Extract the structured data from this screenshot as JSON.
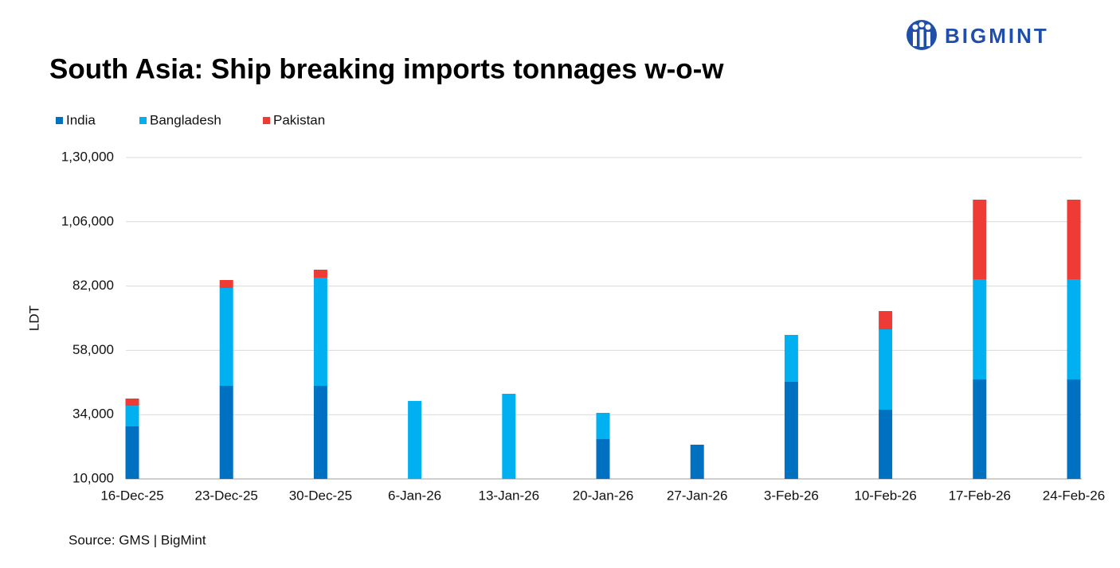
{
  "logo": "BIGMINT",
  "chart_data": {
    "type": "bar",
    "stacked": true,
    "title": "South Asia: Ship breaking imports tonnages w-o-w",
    "y_label": "LDT",
    "source": "Source: GMS | BigMint",
    "categories": [
      "16-Dec-25",
      "23-Dec-25",
      "30-Dec-25",
      "6-Jan-26",
      "13-Jan-26",
      "20-Jan-26",
      "27-Jan-26",
      "3-Feb-26",
      "10-Feb-26",
      "17-Feb-26",
      "24-Feb-26"
    ],
    "series": [
      {
        "name": "India",
        "color": "#0070c0",
        "values": [
          29600,
          44750,
          44750,
          0,
          0,
          24850,
          22770,
          46240,
          35840,
          47130,
          47130
        ]
      },
      {
        "name": "Bangladesh",
        "color": "#00b0f0",
        "values": [
          7700,
          36540,
          40400,
          39100,
          41780,
          9800,
          0,
          17520,
          30000,
          37420,
          37420
        ]
      },
      {
        "name": "Pakistan",
        "color": "#ef3b36",
        "values": [
          2700,
          2970,
          2970,
          0,
          0,
          0,
          0,
          0,
          6830,
          29710,
          29710
        ]
      }
    ],
    "ylim": [
      10000,
      130000
    ],
    "yticks": [
      {
        "value": 10000,
        "label": "10,000"
      },
      {
        "value": 34000,
        "label": "34,000"
      },
      {
        "value": 58000,
        "label": "58,000"
      },
      {
        "value": 82000,
        "label": "82,000"
      },
      {
        "value": 106000,
        "label": "1,06,000"
      },
      {
        "value": 130000,
        "label": "1,30,000"
      }
    ],
    "grid": true,
    "legend": "top-left"
  }
}
